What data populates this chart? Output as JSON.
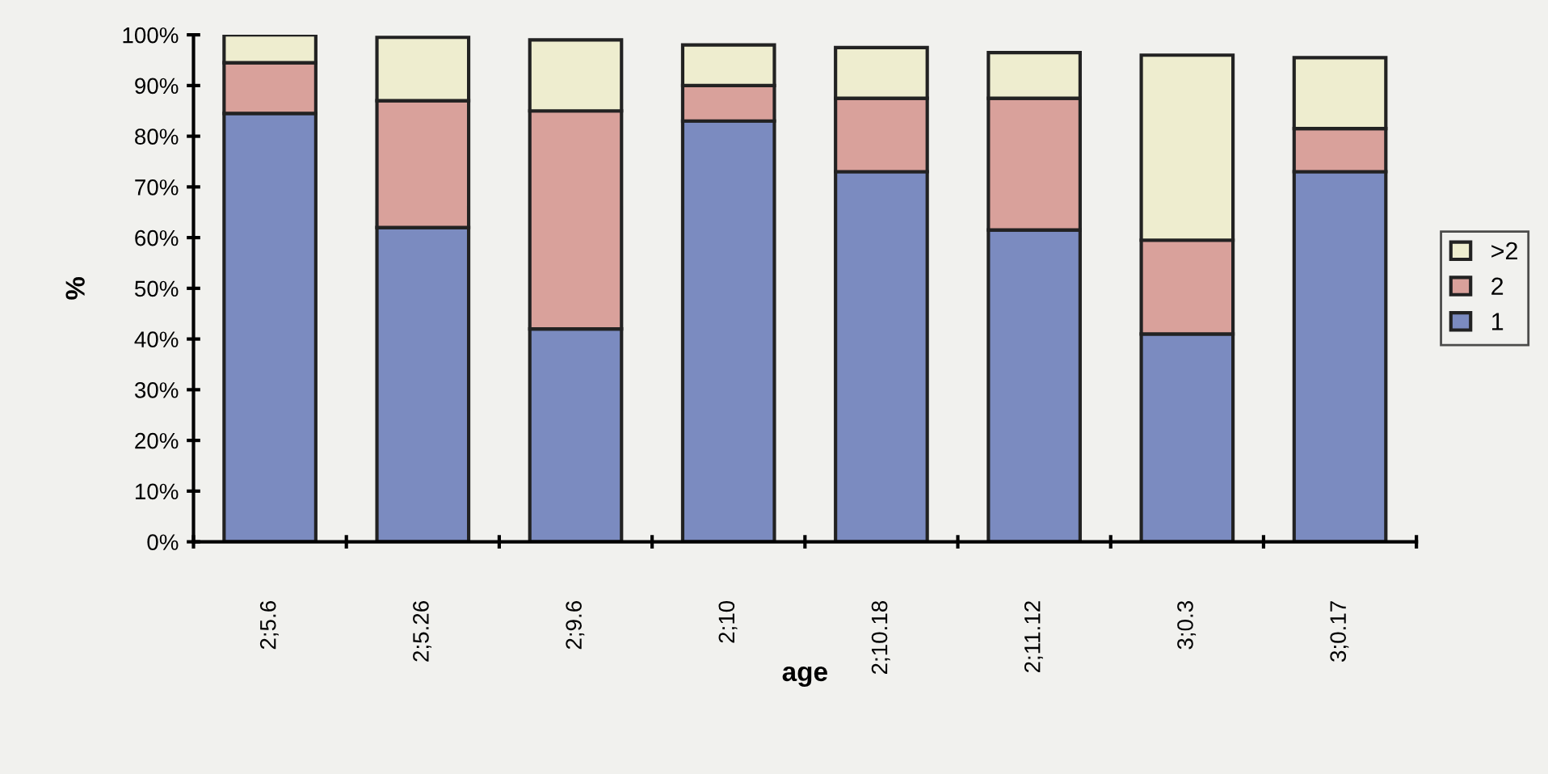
{
  "chart_data": {
    "type": "bar",
    "stacked": true,
    "xlabel": "age",
    "ylabel": "%",
    "categories": [
      "2;5.6",
      "2;5.26",
      "2;9.6",
      "2;10",
      "2;10.18",
      "2;11.12",
      "3;0.3",
      "3;0.17"
    ],
    "series": [
      {
        "name": "1",
        "color": "#7b8bc0",
        "values": [
          84.5,
          62,
          42,
          83,
          73,
          61.5,
          41,
          73
        ]
      },
      {
        "name": "2",
        "color": "#d9a19b",
        "values": [
          10,
          25,
          43,
          7,
          14.5,
          26,
          18.5,
          8.5
        ]
      },
      {
        "name": ">2",
        "color": "#eeedcf",
        "values": [
          5.5,
          12.5,
          14,
          8,
          10,
          9,
          36.5,
          14
        ]
      }
    ],
    "ylim": [
      0,
      100
    ],
    "yticks": [
      {
        "value": 0,
        "label": "0%"
      },
      {
        "value": 10,
        "label": "10%"
      },
      {
        "value": 20,
        "label": "20%"
      },
      {
        "value": 30,
        "label": "30%"
      },
      {
        "value": 40,
        "label": "40%"
      },
      {
        "value": 50,
        "label": "50%"
      },
      {
        "value": 60,
        "label": "60%"
      },
      {
        "value": 70,
        "label": "70%"
      },
      {
        "value": 80,
        "label": "80%"
      },
      {
        "value": 90,
        "label": "90%"
      },
      {
        "value": 100,
        "label": "100%"
      }
    ],
    "grid": false,
    "legend": "right"
  }
}
